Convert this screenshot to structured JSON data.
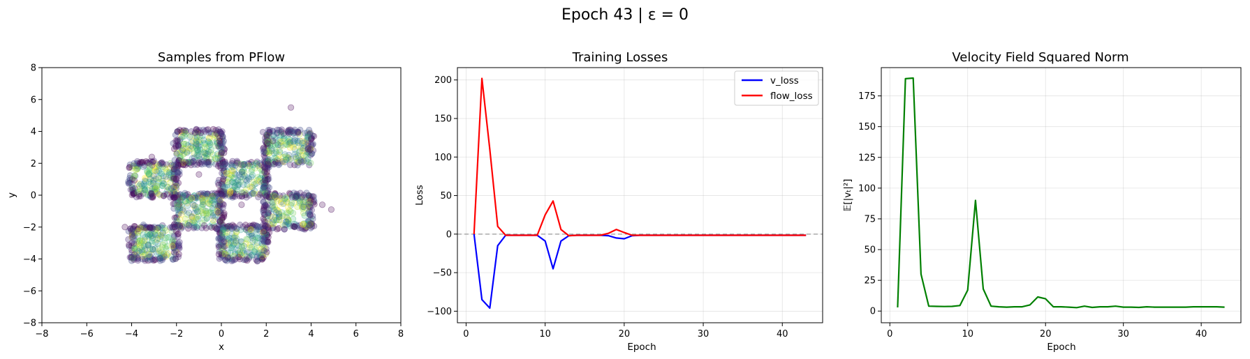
{
  "figure": {
    "suptitle": "Epoch 43 | ε = 0"
  },
  "chart_data": [
    {
      "type": "scatter",
      "title": "Samples from PFlow",
      "xlabel": "x",
      "ylabel": "y",
      "xlim": [
        -8,
        8
      ],
      "ylim": [
        -8,
        8
      ],
      "xticks": [
        -8,
        -6,
        -4,
        -2,
        0,
        2,
        4,
        6,
        8
      ],
      "yticks": [
        -8,
        -6,
        -4,
        -2,
        0,
        2,
        4,
        6,
        8
      ],
      "grid": false,
      "colormap": "viridis",
      "clusters": [
        {
          "x": [
            -4,
            -2
          ],
          "y": [
            0,
            2
          ]
        },
        {
          "x": [
            -2,
            0
          ],
          "y": [
            2,
            4
          ]
        },
        {
          "x": [
            0,
            2
          ],
          "y": [
            0,
            2
          ]
        },
        {
          "x": [
            2,
            4
          ],
          "y": [
            2,
            4
          ]
        },
        {
          "x": [
            -2,
            0
          ],
          "y": [
            -2,
            0
          ]
        },
        {
          "x": [
            2,
            4
          ],
          "y": [
            -2,
            0
          ]
        },
        {
          "x": [
            -4,
            -2
          ],
          "y": [
            -4,
            -2
          ]
        },
        {
          "x": [
            0,
            2
          ],
          "y": [
            -4,
            -2
          ]
        }
      ],
      "outliers": [
        [
          3.1,
          5.5
        ],
        [
          4.5,
          -0.6
        ],
        [
          4.9,
          -0.9
        ],
        [
          -4.3,
          -2.0
        ],
        [
          0.9,
          -0.6
        ],
        [
          -1.0,
          1.3
        ],
        [
          -3.1,
          2.4
        ],
        [
          2.3,
          3.4
        ]
      ]
    },
    {
      "type": "line",
      "title": "Training Losses",
      "xlabel": "Epoch",
      "ylabel": "Loss",
      "xlim": [
        -1.1,
        45.1
      ],
      "ylim": [
        -115,
        216
      ],
      "xticks": [
        0,
        10,
        20,
        30,
        40
      ],
      "yticks": [
        -100,
        -50,
        0,
        50,
        100,
        150,
        200
      ],
      "grid": true,
      "legend_position": "top-right",
      "reference_line": 0,
      "x": [
        1,
        2,
        3,
        4,
        5,
        6,
        7,
        8,
        9,
        10,
        11,
        12,
        13,
        14,
        15,
        16,
        17,
        18,
        19,
        20,
        21,
        22,
        23,
        24,
        25,
        26,
        27,
        28,
        29,
        30,
        31,
        32,
        33,
        34,
        35,
        36,
        37,
        38,
        39,
        40,
        41,
        42,
        43
      ],
      "series": [
        {
          "name": "v_loss",
          "color": "#0000ff",
          "values": [
            0,
            -85,
            -96,
            -15,
            -1.5,
            -1.5,
            -1.5,
            -1.5,
            -1.5,
            -9,
            -45,
            -9,
            -2,
            -1.5,
            -1.5,
            -1.5,
            -1.5,
            -2,
            -5,
            -6,
            -2,
            -1.5,
            -1.5,
            -1.5,
            -1.5,
            -1.5,
            -1.5,
            -1.5,
            -1.5,
            -1.5,
            -1.5,
            -1.5,
            -1.5,
            -1.5,
            -1.5,
            -1.5,
            -1.5,
            -1.5,
            -1.5,
            -1.5,
            -1.5,
            -1.5,
            -1.5
          ]
        },
        {
          "name": "flow_loss",
          "color": "#ff0000",
          "values": [
            0,
            202,
            110,
            10,
            -1.5,
            -1.5,
            -1.5,
            -1.5,
            -1.5,
            25,
            43,
            6,
            -2,
            -1.5,
            -1.5,
            -1.5,
            -1.5,
            1,
            6,
            2,
            -1.5,
            -1.5,
            -1.5,
            -1.5,
            -1.5,
            -1.5,
            -1.5,
            -1.5,
            -1.5,
            -1.5,
            -1.5,
            -1.5,
            -1.5,
            -1.5,
            -1.5,
            -1.5,
            -1.5,
            -1.5,
            -1.5,
            -1.5,
            -1.5,
            -1.5,
            -1.5
          ]
        }
      ]
    },
    {
      "type": "line",
      "title": "Velocity Field Squared Norm",
      "xlabel": "Epoch",
      "ylabel": "𝔼[|vₜ|²]",
      "xlim": [
        -1.1,
        45.1
      ],
      "ylim": [
        -9.5,
        198
      ],
      "xticks": [
        0,
        10,
        20,
        30,
        40
      ],
      "yticks": [
        0,
        25,
        50,
        75,
        100,
        125,
        150,
        175
      ],
      "grid": true,
      "x": [
        1,
        2,
        3,
        4,
        5,
        6,
        7,
        8,
        9,
        10,
        11,
        12,
        13,
        14,
        15,
        16,
        17,
        18,
        19,
        20,
        21,
        22,
        23,
        24,
        25,
        26,
        27,
        28,
        29,
        30,
        31,
        32,
        33,
        34,
        35,
        36,
        37,
        38,
        39,
        40,
        41,
        42,
        43
      ],
      "series": [
        {
          "color": "#008000",
          "values": [
            3,
            189,
            189.5,
            30,
            4,
            3.8,
            3.7,
            3.8,
            4.5,
            17,
            90,
            18,
            4,
            3.5,
            3.2,
            3.5,
            3.5,
            5,
            11.5,
            10,
            3.5,
            3.5,
            3.2,
            2.8,
            4,
            3,
            3.5,
            3.5,
            4,
            3.2,
            3.2,
            3,
            3.5,
            3.2,
            3.2,
            3.2,
            3.2,
            3.2,
            3.5,
            3.5,
            3.5,
            3.5,
            3.2
          ]
        }
      ]
    }
  ]
}
